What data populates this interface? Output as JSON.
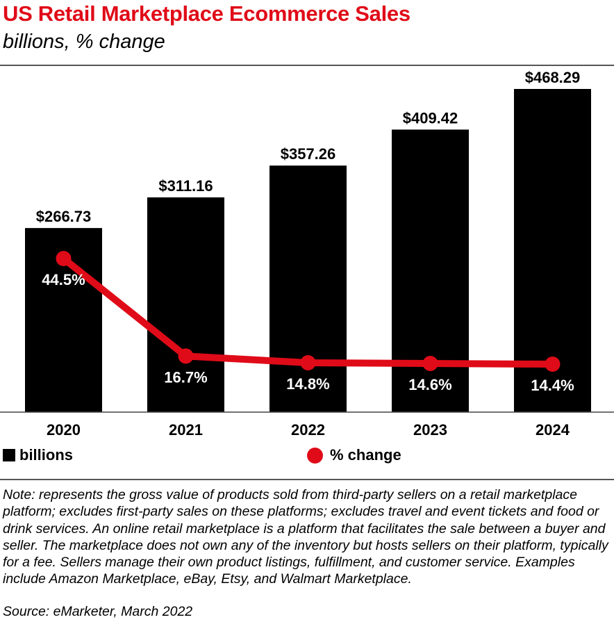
{
  "title": "US Retail Marketplace Ecommerce Sales",
  "subtitle": "billions, % change",
  "chart_data": {
    "type": "bar",
    "categories": [
      "2020",
      "2021",
      "2022",
      "2023",
      "2024"
    ],
    "series": [
      {
        "name": "billions",
        "kind": "bar",
        "color": "#000000",
        "values": [
          266.73,
          311.16,
          357.26,
          409.42,
          468.29
        ],
        "labels": [
          "$266.73",
          "$311.16",
          "$357.26",
          "$409.42",
          "$468.29"
        ]
      },
      {
        "name": "% change",
        "kind": "line",
        "color": "#e00b18",
        "values": [
          44.5,
          16.7,
          14.8,
          14.6,
          14.4
        ],
        "labels": [
          "44.5%",
          "16.7%",
          "14.8%",
          "14.6%",
          "14.4%"
        ]
      }
    ],
    "legend": [
      "billions",
      "% change"
    ]
  },
  "note": "Note: represents the gross value of products sold from third-party sellers on a retail marketplace platform; excludes first-party sales on these platforms; excludes travel and event tickets and food or drink services. An online retail marketplace is a platform that facilitates the sale between a buyer and seller. The marketplace does not own any of the inventory but hosts sellers on their platform, typically for a fee. Sellers manage their own product listings, fulfillment, and customer service. Examples include Amazon Marketplace, eBay, Etsy, and Walmart Marketplace.",
  "source": "Source: eMarketer, March 2022"
}
